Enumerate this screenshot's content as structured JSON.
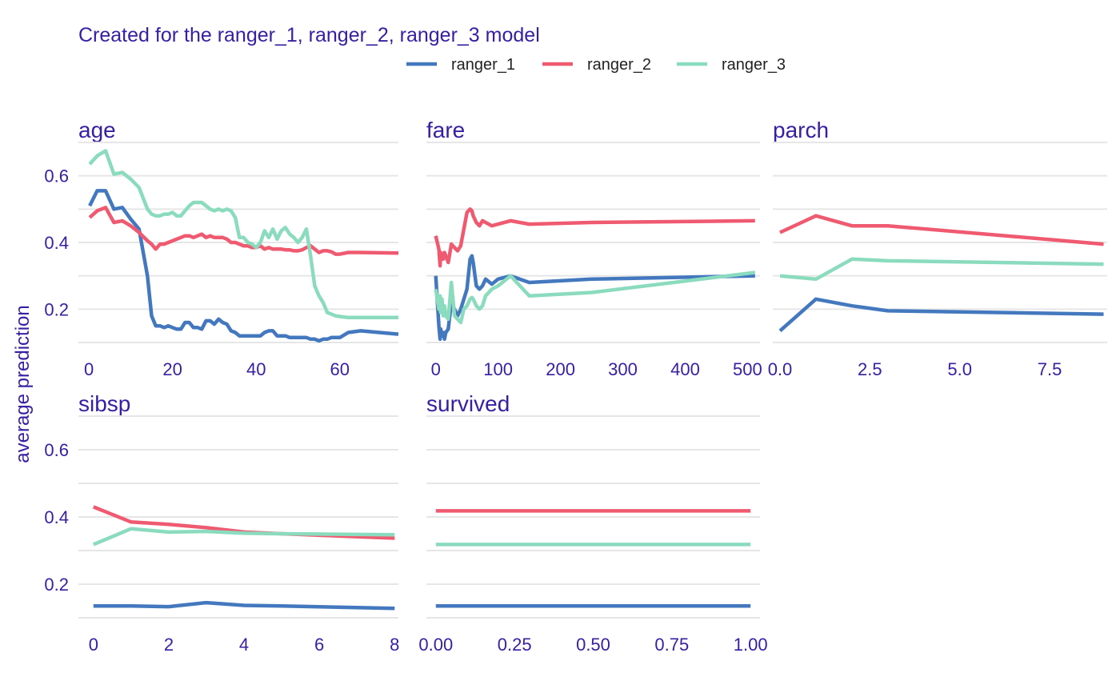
{
  "chart_data": {
    "type": "line",
    "subtitle": "Created for the ranger_1, ranger_2, ranger_3 model",
    "ylabel": "average prediction",
    "ylim": [
      0.1,
      0.7
    ],
    "y_ticks": [
      "0.2",
      "0.4",
      "0.6"
    ],
    "grid": true,
    "legend_position": "top",
    "text_color": "#371ea3",
    "grid_color": "#e6e6e6",
    "series_colors": {
      "ranger_1": "#4378bf",
      "ranger_2": "#f05a71",
      "ranger_3": "#8bdcbe"
    },
    "legend": [
      "ranger_1",
      "ranger_2",
      "ranger_3"
    ],
    "panels": [
      {
        "variable": "age",
        "xlim": [
          -2.5,
          74
        ],
        "x_ticks": [
          "0",
          "20",
          "40",
          "60"
        ],
        "x_tick_values": [
          0,
          20,
          40,
          60
        ],
        "series": [
          {
            "name": "ranger_1",
            "x": [
              0.2,
              2,
              4,
              6,
              8,
              10,
              12,
              14,
              15,
              16,
              17,
              18,
              19,
              20,
              21,
              22,
              23,
              24,
              25,
              26,
              27,
              28,
              29,
              30,
              31,
              32,
              33,
              34,
              35,
              36,
              37,
              38,
              39,
              40,
              41,
              42,
              43,
              44,
              45,
              46,
              47,
              48,
              49,
              50,
              51,
              52,
              53,
              54,
              55,
              56,
              57,
              58,
              59,
              60,
              62,
              65,
              74
            ],
            "y": [
              0.51,
              0.555,
              0.555,
              0.5,
              0.505,
              0.47,
              0.44,
              0.3,
              0.18,
              0.15,
              0.15,
              0.145,
              0.15,
              0.145,
              0.14,
              0.14,
              0.16,
              0.16,
              0.145,
              0.145,
              0.14,
              0.165,
              0.165,
              0.155,
              0.17,
              0.16,
              0.155,
              0.135,
              0.13,
              0.12,
              0.12,
              0.12,
              0.12,
              0.12,
              0.12,
              0.13,
              0.135,
              0.135,
              0.12,
              0.12,
              0.12,
              0.115,
              0.115,
              0.115,
              0.115,
              0.115,
              0.11,
              0.11,
              0.105,
              0.11,
              0.11,
              0.115,
              0.115,
              0.115,
              0.13,
              0.135,
              0.125
            ]
          },
          {
            "name": "ranger_2",
            "x": [
              0.2,
              2,
              4,
              6,
              8,
              10,
              12,
              14,
              15,
              16,
              17,
              18,
              19,
              20,
              21,
              22,
              23,
              24,
              25,
              26,
              27,
              28,
              29,
              30,
              31,
              32,
              33,
              34,
              35,
              36,
              37,
              38,
              39,
              40,
              41,
              42,
              43,
              44,
              45,
              46,
              47,
              48,
              49,
              50,
              51,
              52,
              53,
              54,
              55,
              56,
              57,
              58,
              59,
              60,
              62,
              65,
              74
            ],
            "y": [
              0.475,
              0.495,
              0.505,
              0.46,
              0.465,
              0.45,
              0.43,
              0.405,
              0.395,
              0.38,
              0.395,
              0.395,
              0.4,
              0.405,
              0.41,
              0.415,
              0.42,
              0.42,
              0.415,
              0.42,
              0.425,
              0.415,
              0.42,
              0.415,
              0.415,
              0.415,
              0.41,
              0.4,
              0.4,
              0.395,
              0.39,
              0.39,
              0.385,
              0.385,
              0.39,
              0.38,
              0.385,
              0.38,
              0.38,
              0.38,
              0.378,
              0.378,
              0.375,
              0.375,
              0.378,
              0.385,
              0.39,
              0.38,
              0.37,
              0.375,
              0.375,
              0.372,
              0.365,
              0.365,
              0.37,
              0.37,
              0.368
            ]
          },
          {
            "name": "ranger_3",
            "x": [
              0.2,
              2,
              4,
              6,
              8,
              10,
              12,
              14,
              15,
              16,
              17,
              18,
              19,
              20,
              21,
              22,
              23,
              24,
              25,
              26,
              27,
              28,
              29,
              30,
              31,
              32,
              33,
              34,
              35,
              36,
              37,
              38,
              39,
              40,
              41,
              42,
              43,
              44,
              45,
              46,
              47,
              48,
              49,
              50,
              51,
              52,
              53,
              54,
              55,
              56,
              57,
              58,
              59,
              60,
              62,
              65,
              74
            ],
            "y": [
              0.635,
              0.66,
              0.675,
              0.605,
              0.61,
              0.59,
              0.565,
              0.5,
              0.485,
              0.48,
              0.48,
              0.485,
              0.485,
              0.49,
              0.48,
              0.48,
              0.495,
              0.51,
              0.52,
              0.52,
              0.52,
              0.51,
              0.5,
              0.495,
              0.5,
              0.495,
              0.5,
              0.495,
              0.475,
              0.415,
              0.415,
              0.4,
              0.395,
              0.385,
              0.4,
              0.435,
              0.415,
              0.44,
              0.41,
              0.435,
              0.445,
              0.425,
              0.415,
              0.4,
              0.415,
              0.44,
              0.36,
              0.27,
              0.24,
              0.22,
              0.19,
              0.185,
              0.18,
              0.178,
              0.175,
              0.175,
              0.175
            ]
          }
        ]
      },
      {
        "variable": "fare",
        "xlim": [
          -15,
          520
        ],
        "x_ticks": [
          "0",
          "100",
          "200",
          "300",
          "400",
          "500"
        ],
        "x_tick_values": [
          0,
          100,
          200,
          300,
          400,
          500
        ],
        "series": [
          {
            "name": "ranger_1",
            "x": [
              0,
              5,
              7,
              8,
              10,
              12,
              14,
              16,
              20,
              25,
              30,
              35,
              40,
              45,
              50,
              55,
              58,
              60,
              65,
              70,
              75,
              80,
              90,
              100,
              120,
              150,
              250,
              512
            ],
            "y": [
              0.3,
              0.15,
              0.11,
              0.14,
              0.12,
              0.13,
              0.11,
              0.13,
              0.14,
              0.22,
              0.2,
              0.18,
              0.2,
              0.23,
              0.26,
              0.35,
              0.36,
              0.34,
              0.27,
              0.26,
              0.27,
              0.29,
              0.275,
              0.29,
              0.3,
              0.28,
              0.29,
              0.3
            ]
          },
          {
            "name": "ranger_2",
            "x": [
              0,
              5,
              7,
              8,
              10,
              12,
              14,
              16,
              20,
              25,
              30,
              35,
              40,
              45,
              50,
              55,
              58,
              60,
              65,
              70,
              75,
              80,
              90,
              100,
              120,
              150,
              250,
              512
            ],
            "y": [
              0.42,
              0.38,
              0.33,
              0.37,
              0.36,
              0.35,
              0.37,
              0.36,
              0.34,
              0.395,
              0.385,
              0.375,
              0.39,
              0.44,
              0.49,
              0.5,
              0.495,
              0.48,
              0.46,
              0.45,
              0.465,
              0.46,
              0.45,
              0.455,
              0.465,
              0.455,
              0.46,
              0.465
            ]
          },
          {
            "name": "ranger_3",
            "x": [
              0,
              5,
              7,
              8,
              10,
              12,
              14,
              16,
              20,
              25,
              30,
              35,
              40,
              45,
              50,
              55,
              58,
              60,
              65,
              70,
              75,
              80,
              90,
              100,
              120,
              150,
              250,
              512
            ],
            "y": [
              0.26,
              0.2,
              0.24,
              0.19,
              0.23,
              0.18,
              0.21,
              0.18,
              0.17,
              0.28,
              0.18,
              0.17,
              0.16,
              0.2,
              0.21,
              0.23,
              0.235,
              0.23,
              0.21,
              0.2,
              0.21,
              0.24,
              0.26,
              0.27,
              0.3,
              0.24,
              0.25,
              0.31
            ]
          }
        ]
      },
      {
        "variable": "parch",
        "xlim": [
          -0.2,
          9.1
        ],
        "x_ticks": [
          "0.0",
          "2.5",
          "5.0",
          "7.5"
        ],
        "x_tick_values": [
          0,
          2.5,
          5,
          7.5
        ],
        "series": [
          {
            "name": "ranger_1",
            "x": [
              0,
              1,
              2,
              3,
              9
            ],
            "y": [
              0.135,
              0.23,
              0.21,
              0.195,
              0.185
            ]
          },
          {
            "name": "ranger_2",
            "x": [
              0,
              1,
              2,
              3,
              9
            ],
            "y": [
              0.43,
              0.48,
              0.45,
              0.45,
              0.395
            ]
          },
          {
            "name": "ranger_3",
            "x": [
              0,
              1,
              2,
              3,
              9
            ],
            "y": [
              0.3,
              0.29,
              0.35,
              0.345,
              0.335
            ]
          }
        ]
      },
      {
        "variable": "sibsp",
        "xlim": [
          -0.4,
          8.1
        ],
        "x_ticks": [
          "0",
          "2",
          "4",
          "6",
          "8"
        ],
        "x_tick_values": [
          0,
          2,
          4,
          6,
          8
        ],
        "series": [
          {
            "name": "ranger_1",
            "x": [
              0,
              1,
              2,
              3,
              4,
              5,
              8
            ],
            "y": [
              0.135,
              0.135,
              0.133,
              0.145,
              0.137,
              0.135,
              0.128
            ]
          },
          {
            "name": "ranger_2",
            "x": [
              0,
              1,
              2,
              3,
              4,
              5,
              8
            ],
            "y": [
              0.43,
              0.385,
              0.378,
              0.368,
              0.355,
              0.35,
              0.337
            ]
          },
          {
            "name": "ranger_3",
            "x": [
              0,
              1,
              2,
              3,
              4,
              5,
              8
            ],
            "y": [
              0.318,
              0.365,
              0.355,
              0.357,
              0.352,
              0.35,
              0.347
            ]
          }
        ]
      },
      {
        "variable": "survived",
        "xlim": [
          -0.03,
          1.03
        ],
        "x_ticks": [
          "0.00",
          "0.25",
          "0.50",
          "0.75",
          "1.00"
        ],
        "x_tick_values": [
          0,
          0.25,
          0.5,
          0.75,
          1
        ],
        "series": [
          {
            "name": "ranger_1",
            "x": [
              0,
              1
            ],
            "y": [
              0.135,
              0.135
            ]
          },
          {
            "name": "ranger_2",
            "x": [
              0,
              1
            ],
            "y": [
              0.418,
              0.418
            ]
          },
          {
            "name": "ranger_3",
            "x": [
              0,
              1
            ],
            "y": [
              0.318,
              0.318
            ]
          }
        ]
      }
    ]
  }
}
